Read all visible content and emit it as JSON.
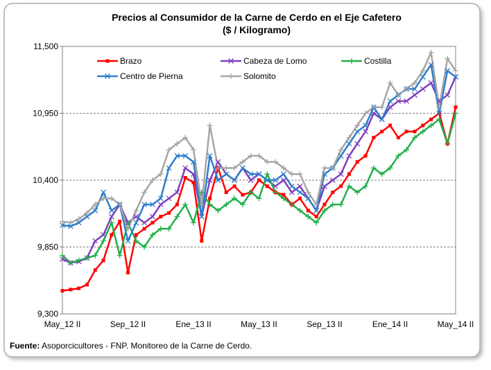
{
  "chart_data": {
    "type": "line",
    "title": "Precios al Consumidor de la Carne de Cerdo en el Eje Cafetero",
    "subtitle": "($ / Kilogramo)",
    "categories": [
      "May_12 II",
      null,
      null,
      null,
      null,
      null,
      null,
      null,
      "Sep_12 II",
      null,
      null,
      null,
      null,
      null,
      null,
      null,
      "Ene_13 II",
      null,
      null,
      null,
      null,
      null,
      null,
      null,
      "May_13 II",
      null,
      null,
      null,
      null,
      null,
      null,
      null,
      "Sep_13 II",
      null,
      null,
      null,
      null,
      null,
      null,
      null,
      "Ene_14 II",
      null,
      null,
      null,
      null,
      null,
      null,
      null,
      "May_14 II"
    ],
    "ylim": [
      9300,
      11500
    ],
    "yticks": [
      {
        "value": 9300,
        "label": "9,300"
      },
      {
        "value": 9850,
        "label": "9,850"
      },
      {
        "value": 10400,
        "label": "10,400"
      },
      {
        "value": 10950,
        "label": "10,950"
      },
      {
        "value": 11500,
        "label": "11,500"
      }
    ],
    "grid": true,
    "legend": "top",
    "series": [
      {
        "name": "Brazo",
        "color": "#ff0000",
        "marker": "square",
        "values": [
          9490,
          9500,
          9510,
          9540,
          9660,
          9740,
          9950,
          10060,
          9640,
          9950,
          10000,
          10050,
          10100,
          10130,
          10200,
          10420,
          10380,
          9900,
          10250,
          10500,
          10300,
          10350,
          10280,
          10300,
          10400,
          10350,
          10300,
          10280,
          10200,
          10250,
          10150,
          10100,
          10200,
          10300,
          10350,
          10450,
          10550,
          10600,
          10750,
          10800,
          10850,
          10750,
          10800,
          10800,
          10850,
          10900,
          10950,
          10700,
          11000
        ]
      },
      {
        "name": "Cabeza de Lomo",
        "color": "#7f3fbf",
        "marker": "x",
        "values": [
          9750,
          9720,
          9730,
          9760,
          9900,
          9950,
          10100,
          10200,
          10050,
          10100,
          10050,
          10100,
          10200,
          10250,
          10300,
          10500,
          10450,
          10100,
          10400,
          10550,
          10450,
          10400,
          10500,
          10400,
          10450,
          10400,
          10350,
          10400,
          10300,
          10350,
          10250,
          10150,
          10350,
          10400,
          10450,
          10600,
          10700,
          10800,
          10950,
          10900,
          11000,
          11050,
          11050,
          11100,
          11150,
          11200,
          11050,
          11100,
          11250
        ]
      },
      {
        "name": "Costilla",
        "color": "#22b04a",
        "marker": "plus",
        "values": [
          9780,
          9720,
          9740,
          9760,
          9780,
          9900,
          10050,
          9780,
          10050,
          9900,
          9850,
          9950,
          10000,
          10000,
          10100,
          10200,
          10050,
          10300,
          10200,
          10150,
          10200,
          10250,
          10200,
          10300,
          10250,
          10450,
          10300,
          10250,
          10200,
          10150,
          10100,
          10050,
          10150,
          10200,
          10200,
          10350,
          10300,
          10350,
          10500,
          10450,
          10500,
          10600,
          10650,
          10750,
          10800,
          10850,
          10900,
          10700,
          10950
        ]
      },
      {
        "name": "Centro de Pierna",
        "color": "#2f7ec9",
        "marker": "x",
        "values": [
          10030,
          10020,
          10050,
          10100,
          10150,
          10300,
          10150,
          10200,
          9900,
          10050,
          10200,
          10200,
          10250,
          10500,
          10600,
          10600,
          10550,
          10100,
          10600,
          10400,
          10450,
          10400,
          10500,
          10450,
          10450,
          10400,
          10400,
          10450,
          10350,
          10300,
          10250,
          10150,
          10450,
          10500,
          10600,
          10700,
          10800,
          10850,
          11000,
          10900,
          11050,
          11100,
          11150,
          11150,
          11250,
          11350,
          10950,
          11300,
          11250
        ]
      },
      {
        "name": "Solomito",
        "color": "#a6a6a6",
        "marker": "plus",
        "values": [
          10060,
          10050,
          10080,
          10130,
          10200,
          10250,
          10250,
          10200,
          10000,
          10150,
          10300,
          10400,
          10450,
          10650,
          10700,
          10750,
          10650,
          10200,
          10850,
          10500,
          10500,
          10500,
          10550,
          10600,
          10600,
          10550,
          10550,
          10500,
          10450,
          10450,
          10300,
          10200,
          10500,
          10500,
          10650,
          10750,
          10850,
          10950,
          11000,
          11000,
          11200,
          11100,
          11150,
          11200,
          11300,
          11450,
          11000,
          11400,
          11300
        ]
      }
    ]
  },
  "footer": {
    "label": "Fuente:",
    "text": "Asoporcicultores - FNP. Monitoreo de la Carne de Cerdo."
  }
}
